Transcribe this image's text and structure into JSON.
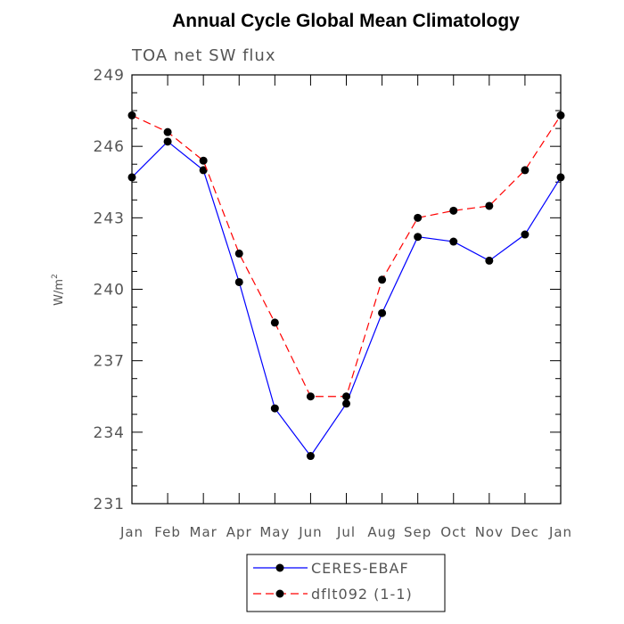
{
  "chart_data": {
    "type": "line",
    "title": "Annual Cycle Global Mean Climatology",
    "subtitle": "TOA net SW flux",
    "ylabel": "W/m",
    "ylabel_sup": "2",
    "ylim": [
      231,
      249
    ],
    "yticks": [
      "231",
      "234",
      "237",
      "240",
      "243",
      "246",
      "249"
    ],
    "categories": [
      "Jan",
      "Feb",
      "Mar",
      "Apr",
      "May",
      "Jun",
      "Jul",
      "Aug",
      "Sep",
      "Oct",
      "Nov",
      "Dec",
      "Jan"
    ],
    "series": [
      {
        "name": "CERES-EBAF",
        "color": "#0000ff",
        "dash": "solid",
        "values": [
          244.7,
          246.2,
          245.0,
          240.3,
          235.0,
          233.0,
          235.2,
          239.0,
          242.2,
          242.0,
          241.2,
          242.3,
          244.7
        ]
      },
      {
        "name": "dflt092 (1-1)",
        "color": "#ff0000",
        "dash": "dashed",
        "values": [
          247.3,
          246.6,
          245.4,
          241.5,
          238.6,
          235.5,
          235.5,
          240.4,
          243.0,
          243.3,
          243.5,
          245.0,
          247.3
        ]
      }
    ],
    "grid": false,
    "legend_position": "bottom-center"
  }
}
